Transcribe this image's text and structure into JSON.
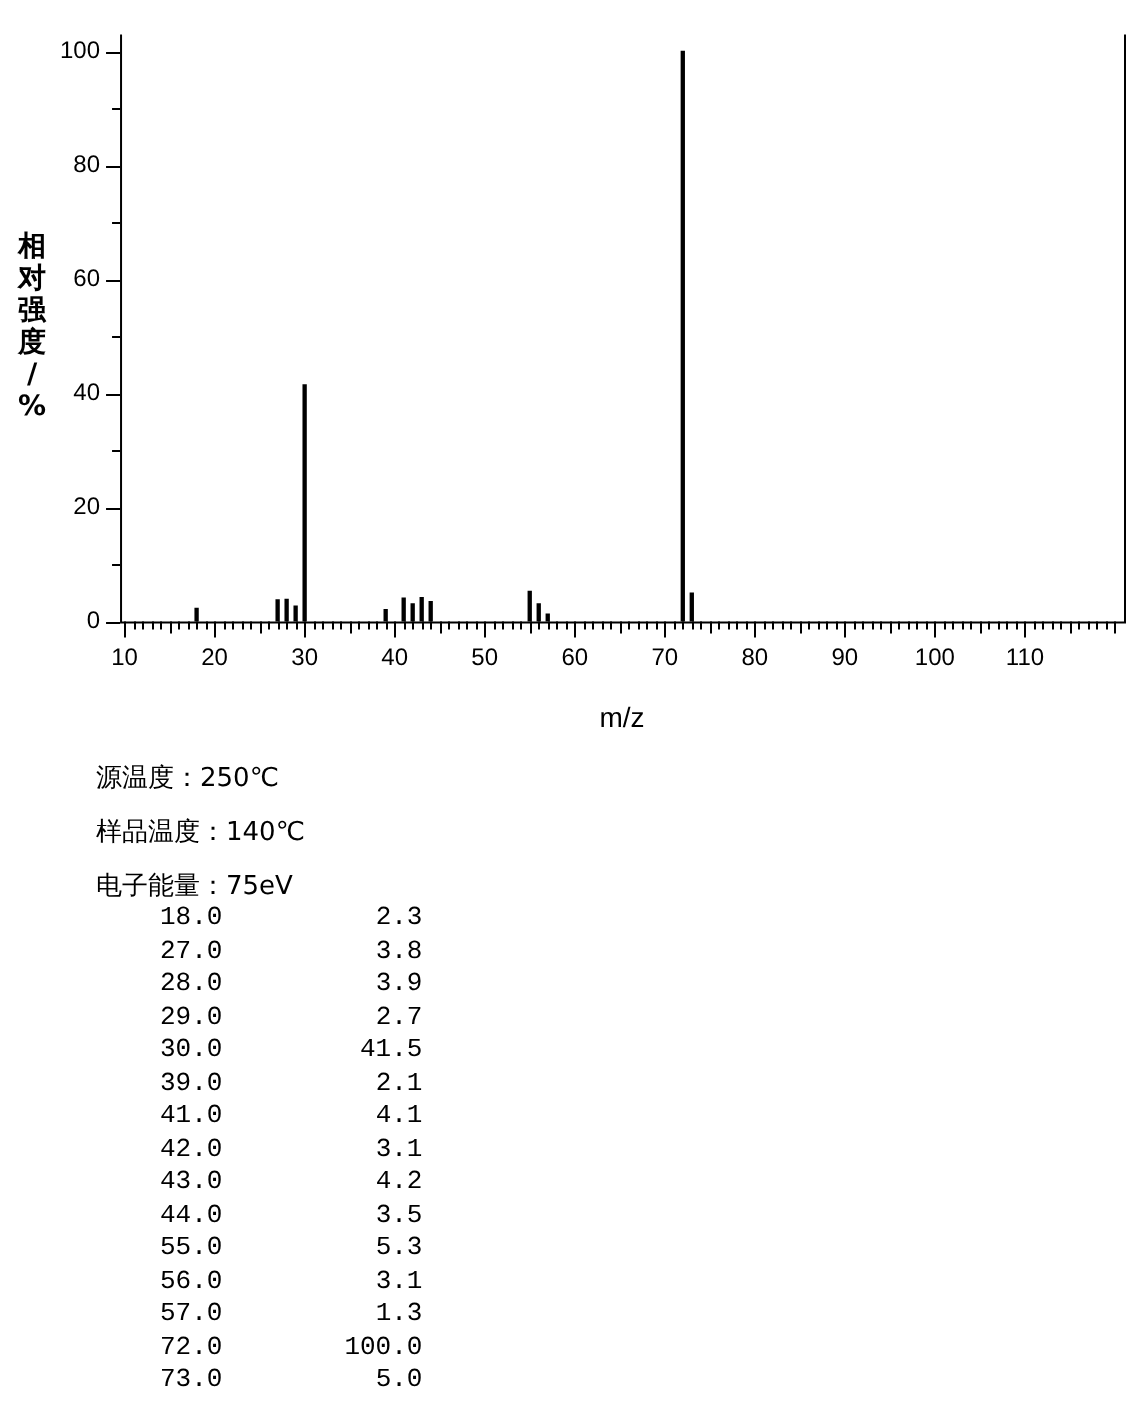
{
  "chart_data": {
    "type": "bar",
    "xlabel": "m/z",
    "ylabel": "相对强度/%",
    "x": [
      18,
      27,
      28,
      29,
      30,
      39,
      41,
      42,
      43,
      44,
      55,
      56,
      57,
      72,
      73
    ],
    "values": [
      2.3,
      3.8,
      3.9,
      2.7,
      41.5,
      2.1,
      4.1,
      3.1,
      4.2,
      3.5,
      5.3,
      3.1,
      1.3,
      100.0,
      5.0
    ],
    "color": "#000000",
    "xlim": [
      10,
      120.5
    ],
    "xticks": [
      10,
      {
        "value": 11,
        "label": null
      },
      {
        "value": 12,
        "label": null
      },
      {
        "value": 13,
        "label": null
      },
      {
        "value": 14,
        "label": null
      },
      {
        "value": 15,
        "label": null
      },
      {
        "value": 16,
        "label": null
      },
      {
        "value": 17,
        "label": null
      },
      {
        "value": 18,
        "label": null
      },
      {
        "value": 19,
        "label": null
      },
      20,
      {
        "value": 21,
        "label": null
      },
      {
        "value": 22,
        "label": null
      },
      {
        "value": 23,
        "label": null
      },
      {
        "value": 24,
        "label": null
      },
      {
        "value": 25,
        "label": null
      },
      {
        "value": 26,
        "label": null
      },
      {
        "value": 27,
        "label": null
      },
      {
        "value": 28,
        "label": null
      },
      {
        "value": 29,
        "label": null
      },
      30,
      {
        "value": 31,
        "label": null
      },
      {
        "value": 32,
        "label": null
      },
      {
        "value": 33,
        "label": null
      },
      {
        "value": 34,
        "label": null
      },
      {
        "value": 35,
        "label": null
      },
      {
        "value": 36,
        "label": null
      },
      {
        "value": 37,
        "label": null
      },
      {
        "value": 38,
        "label": null
      },
      {
        "value": 39,
        "label": null
      },
      40,
      {
        "value": 41,
        "label": null
      },
      {
        "value": 42,
        "label": null
      },
      {
        "value": 43,
        "label": null
      },
      {
        "value": 44,
        "label": null
      },
      {
        "value": 45,
        "label": null
      },
      {
        "value": 46,
        "label": null
      },
      {
        "value": 47,
        "label": null
      },
      {
        "value": 48,
        "label": null
      },
      {
        "value": 49,
        "label": null
      },
      50,
      {
        "value": 51,
        "label": null
      },
      {
        "value": 52,
        "label": null
      },
      {
        "value": 53,
        "label": null
      },
      {
        "value": 54,
        "label": null
      },
      {
        "value": 55,
        "label": null
      },
      {
        "value": 56,
        "label": null
      },
      {
        "value": 57,
        "label": null
      },
      {
        "value": 58,
        "label": null
      },
      {
        "value": 59,
        "label": null
      },
      60,
      {
        "value": 61,
        "label": null
      },
      {
        "value": 62,
        "label": null
      },
      {
        "value": 63,
        "label": null
      },
      {
        "value": 64,
        "label": null
      },
      {
        "value": 65,
        "label": null
      },
      {
        "value": 66,
        "label": null
      },
      {
        "value": 67,
        "label": null
      },
      {
        "value": 68,
        "label": null
      },
      {
        "value": 69,
        "label": null
      },
      70,
      {
        "value": 71,
        "label": null
      },
      {
        "value": 72,
        "label": null
      },
      {
        "value": 73,
        "label": null
      },
      {
        "value": 74,
        "label": null
      },
      {
        "value": 75,
        "label": null
      },
      {
        "value": 76,
        "label": null
      },
      {
        "value": 77,
        "label": null
      },
      {
        "value": 78,
        "label": null
      },
      {
        "value": 79,
        "label": null
      },
      80,
      {
        "value": 81,
        "label": null
      },
      {
        "value": 82,
        "label": null
      },
      {
        "value": 83,
        "label": null
      },
      {
        "value": 84,
        "label": null
      },
      {
        "value": 85,
        "label": null
      },
      {
        "value": 86,
        "label": null
      },
      {
        "value": 87,
        "label": null
      },
      {
        "value": 88,
        "label": null
      },
      {
        "value": 89,
        "label": null
      },
      90,
      {
        "value": 91,
        "label": null
      },
      {
        "value": 92,
        "label": null
      },
      {
        "value": 93,
        "label": null
      },
      {
        "value": 94,
        "label": null
      },
      {
        "value": 95,
        "label": null
      },
      {
        "value": 96,
        "label": null
      },
      {
        "value": 97,
        "label": null
      },
      {
        "value": 98,
        "label": null
      },
      {
        "value": 99,
        "label": null
      },
      100,
      {
        "value": 101,
        "label": null
      },
      {
        "value": 102,
        "label": null
      },
      {
        "value": 103,
        "label": null
      },
      {
        "value": 104,
        "label": null
      },
      {
        "value": 105,
        "label": null
      },
      {
        "value": 106,
        "label": null
      },
      {
        "value": 107,
        "label": null
      },
      {
        "value": 108,
        "label": null
      },
      {
        "value": 109,
        "label": null
      },
      110,
      {
        "value": 111,
        "label": null
      },
      {
        "value": 112,
        "label": null
      },
      {
        "value": 113,
        "label": null
      },
      {
        "value": 114,
        "label": null
      },
      {
        "value": 115,
        "label": null
      },
      {
        "value": 116,
        "label": null
      },
      {
        "value": 117,
        "label": null
      },
      {
        "value": 118,
        "label": null
      },
      {
        "value": 119,
        "label": null
      },
      {
        "value": 120,
        "label": null
      }
    ],
    "ylim": [
      0,
      103
    ],
    "yticks": [
      0,
      {
        "value": 10,
        "label": null
      },
      20,
      {
        "value": 30,
        "label": null
      },
      40,
      {
        "value": 50,
        "label": null
      },
      60,
      {
        "value": 70,
        "label": null
      },
      80,
      {
        "value": 90,
        "label": null
      },
      100
    ],
    "grid": false,
    "annotations": [
      "源温度：250℃",
      "样品温度：140℃",
      "电子能量：75eV",
      "18.0 2.3",
      "27.0 3.8",
      "28.0 3.9",
      "29.0 2.7",
      "30.0 41.5",
      "39.0 2.1",
      "41.0 4.1",
      "42.0 3.1",
      "43.0 4.2",
      "44.0 3.5",
      "55.0 5.3",
      "56.0 3.1",
      "57.0 1.3",
      "72.0 100.0",
      "73.0 5.0"
    ]
  }
}
